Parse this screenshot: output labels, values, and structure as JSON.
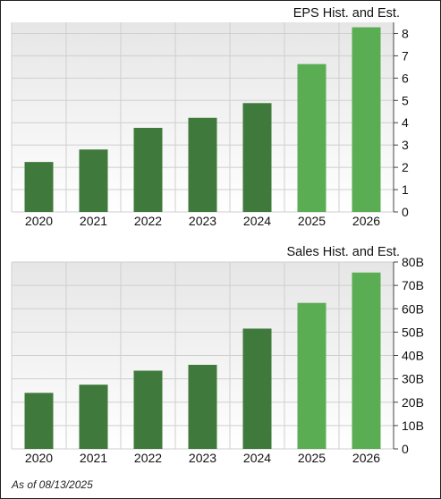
{
  "footer": {
    "as_of": "As of 08/13/2025"
  },
  "colors": {
    "historical": "#3f7a3c",
    "estimate": "#5aad52",
    "grid": "#cfcfcf",
    "plot_bg_top": "#e6e6e6",
    "plot_bg_bottom": "#ffffff"
  },
  "chart_data": [
    {
      "type": "bar",
      "title": "EPS Hist. and Est.",
      "categories": [
        "2020",
        "2021",
        "2022",
        "2023",
        "2024",
        "2025",
        "2026"
      ],
      "values": [
        2.24,
        2.8,
        3.77,
        4.22,
        4.88,
        6.63,
        8.28
      ],
      "estimate_from_index": 5,
      "ylim": [
        0,
        8.5
      ],
      "yticks": [
        0,
        1,
        2,
        3,
        4,
        5,
        6,
        7,
        8
      ],
      "ytick_labels": [
        "0",
        "1",
        "2",
        "3",
        "4",
        "5",
        "6",
        "7",
        "8"
      ],
      "grid": true,
      "y_axis_side": "right"
    },
    {
      "type": "bar",
      "title": "Sales Hist. and Est.",
      "categories": [
        "2020",
        "2021",
        "2022",
        "2023",
        "2024",
        "2025",
        "2026"
      ],
      "values": [
        24,
        27.5,
        33.5,
        36,
        51.5,
        62.5,
        75.5
      ],
      "estimate_from_index": 5,
      "ylim": [
        0,
        80
      ],
      "yticks": [
        0,
        10,
        20,
        30,
        40,
        50,
        60,
        70,
        80
      ],
      "ytick_labels": [
        "0",
        "10B",
        "20B",
        "30B",
        "40B",
        "50B",
        "60B",
        "70B",
        "80B"
      ],
      "grid": true,
      "y_axis_side": "right"
    }
  ]
}
